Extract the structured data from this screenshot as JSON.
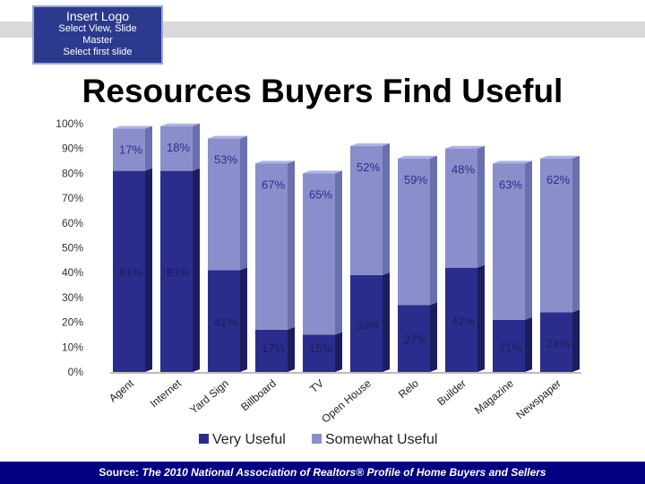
{
  "logo": {
    "title": "Insert Logo",
    "line1": "Select View, Slide",
    "line2": "Master",
    "line3": "Select first slide"
  },
  "title": "Resources Buyers Find Useful",
  "chart_data": {
    "type": "bar",
    "stacked": true,
    "categories": [
      "Agent",
      "Internet",
      "Yard Sign",
      "Billboard",
      "TV",
      "Open House",
      "Relo",
      "Builder",
      "Magazine",
      "Newspaper"
    ],
    "series": [
      {
        "name": "Very Useful",
        "values": [
          81,
          81,
          41,
          17,
          15,
          39,
          27,
          42,
          21,
          24
        ],
        "color": "#2b2d8c"
      },
      {
        "name": "Somewhat Useful",
        "values": [
          17,
          18,
          53,
          67,
          65,
          52,
          59,
          48,
          63,
          62
        ],
        "color": "#8a8fcc"
      }
    ],
    "y_ticks": [
      "0%",
      "10%",
      "20%",
      "30%",
      "40%",
      "50%",
      "60%",
      "70%",
      "80%",
      "90%",
      "100%"
    ],
    "ylim": [
      0,
      100
    ],
    "legend_position": "bottom"
  },
  "footer": {
    "label": "Source:",
    "text": "The 2010 National Association of Realtors® Profile of Home Buyers and Sellers"
  }
}
